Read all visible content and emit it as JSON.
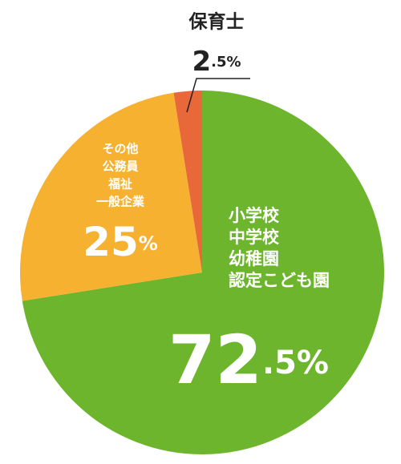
{
  "chart_data": {
    "type": "pie",
    "categories": [
      [
        "小学校",
        "中学校",
        "幼稚園",
        "認定こども園"
      ],
      [
        "その他",
        "公務員",
        "福祉",
        "一般企業"
      ],
      [
        "保育士"
      ]
    ],
    "values": [
      72.5,
      25,
      2.5
    ],
    "value_labels": [
      "72.5%",
      "25%",
      "2.5%"
    ],
    "colors": [
      "#6db52d",
      "#f5b12f",
      "#e8683a"
    ]
  }
}
